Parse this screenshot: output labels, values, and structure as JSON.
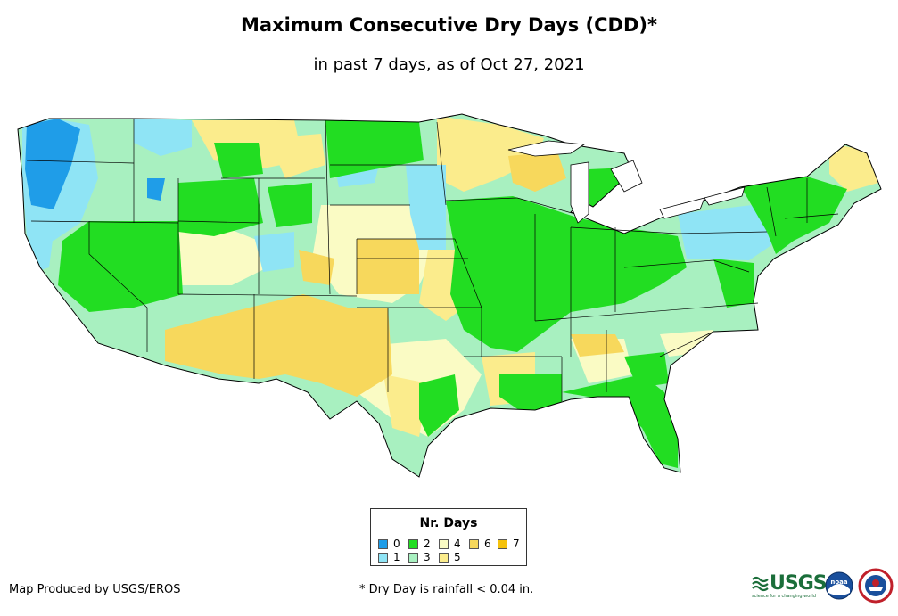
{
  "title": "Maximum Consecutive Dry Days (CDD)*",
  "subtitle": "in past 7 days, as of Oct 27, 2021",
  "map": {
    "region": "contiguous United States",
    "state_boundaries": true,
    "land_color": "#a8f0c0",
    "boundary_color": "#000000"
  },
  "legend": {
    "title": "Nr. Days",
    "items": [
      {
        "label": "0",
        "color": "#1f9de8"
      },
      {
        "label": "1",
        "color": "#8fe4f5"
      },
      {
        "label": "2",
        "color": "#22dd22"
      },
      {
        "label": "3",
        "color": "#a8f0c0"
      },
      {
        "label": "4",
        "color": "#fafbc4"
      },
      {
        "label": "5",
        "color": "#fbec8c"
      },
      {
        "label": "6",
        "color": "#f7d85c"
      },
      {
        "label": "7",
        "color": "#f5c20c"
      }
    ]
  },
  "footer": {
    "credit": "Map Produced by USGS/EROS",
    "footnote": "* Dry Day is rainfall < 0.04 in."
  },
  "logos": {
    "usgs": {
      "text": "USGS",
      "tagline": "science for a changing world",
      "color": "#1b6e3a"
    },
    "noaa": {
      "text": "noaa",
      "color": "#1a4f9c"
    },
    "nws": {
      "color": "#c0202a"
    }
  }
}
